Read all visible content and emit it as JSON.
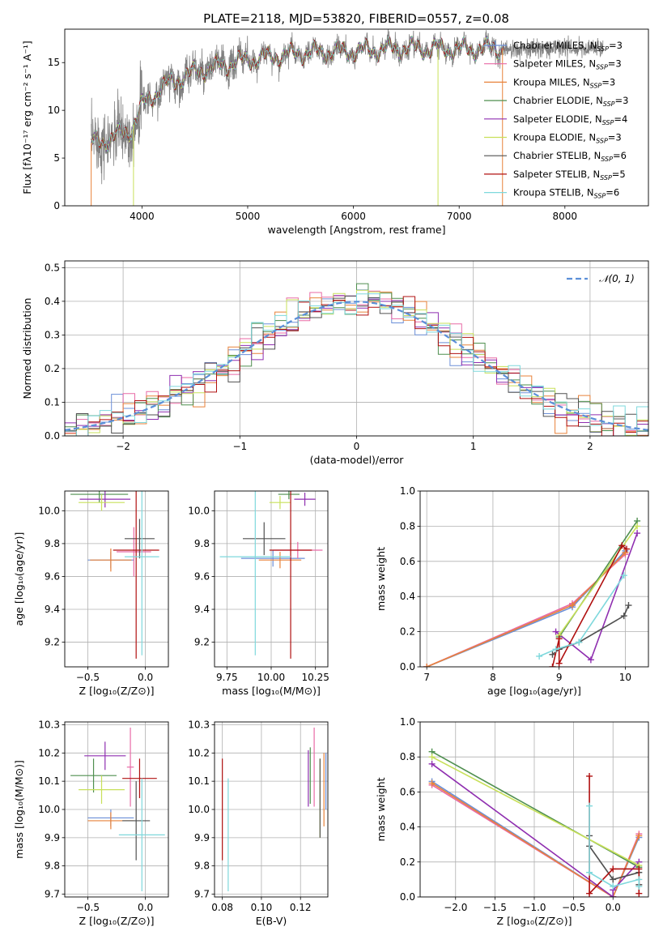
{
  "figure": {
    "title": "PLATE=2118, MJD=53820, FIBERID=0557, z=0.08"
  },
  "colors": {
    "Chabrier MILES": "#6b8fd8",
    "Salpeter MILES": "#e86aa6",
    "Kroupa MILES": "#e8823a",
    "Chabrier ELODIE": "#4f8f4f",
    "Salpeter ELODIE": "#8f2fb0",
    "Kroupa ELODIE": "#c8e05a",
    "Chabrier STELIB": "#505050",
    "Salpeter STELIB": "#b01010",
    "Kroupa STELIB": "#7ed8dc",
    "data": "#808080"
  },
  "chart_data": [
    {
      "type": "line",
      "id": "spectrum",
      "xlabel": "wavelength [Angstrom, rest frame]",
      "ylabel": "Flux [fλ10⁻¹⁷ erg cm⁻² s⁻¹ A⁻¹]",
      "xlim": [
        3270,
        8790
      ],
      "ylim": [
        0,
        18.5
      ],
      "xticks": [
        "4000",
        "5000",
        "6000",
        "7000",
        "8000"
      ],
      "yticks": [
        "0",
        "5",
        "10",
        "15"
      ],
      "legend_position": "right",
      "legend": [
        {
          "label": "Chabrier MILES, N",
          "sub": "SSP",
          "tail": "=3",
          "key": "Chabrier MILES"
        },
        {
          "label": "Salpeter MILES, N",
          "sub": "SSP",
          "tail": "=3",
          "key": "Salpeter MILES"
        },
        {
          "label": "Kroupa MILES, N",
          "sub": "SSP",
          "tail": "=3",
          "key": "Kroupa MILES"
        },
        {
          "label": "Chabrier ELODIE, N",
          "sub": "SSP",
          "tail": "=3",
          "key": "Chabrier ELODIE"
        },
        {
          "label": "Salpeter ELODIE, N",
          "sub": "SSP",
          "tail": "=4",
          "key": "Salpeter ELODIE"
        },
        {
          "label": "Kroupa ELODIE, N",
          "sub": "SSP",
          "tail": "=3",
          "key": "Kroupa ELODIE"
        },
        {
          "label": "Chabrier STELIB, N",
          "sub": "SSP",
          "tail": "=6",
          "key": "Chabrier STELIB"
        },
        {
          "label": "Salpeter STELIB, N",
          "sub": "SSP",
          "tail": "=5",
          "key": "Salpeter STELIB"
        },
        {
          "label": "Kroupa STELIB, N",
          "sub": "SSP",
          "tail": "=6",
          "key": "Kroupa STELIB"
        }
      ],
      "continuum": [
        [
          3500,
          6.5
        ],
        [
          3700,
          7
        ],
        [
          3900,
          8
        ],
        [
          4000,
          10.5
        ],
        [
          4200,
          12.5
        ],
        [
          4500,
          14
        ],
        [
          5000,
          15.3
        ],
        [
          5500,
          16
        ],
        [
          6000,
          16.2
        ],
        [
          6500,
          16.5
        ],
        [
          7000,
          16.4
        ],
        [
          7500,
          16.5
        ]
      ],
      "model_range": [
        3520,
        7420
      ],
      "data_range": [
        3520,
        8360
      ],
      "absorption_features": [
        [
          3520,
          0
        ],
        [
          3920,
          0
        ],
        [
          6800,
          0
        ],
        [
          7410,
          0
        ]
      ]
    },
    {
      "type": "bar",
      "id": "residuals",
      "xlabel": "(data-model)/error",
      "ylabel": "Normed distribution",
      "xlim": [
        -2.5,
        2.5
      ],
      "ylim": [
        0,
        0.52
      ],
      "xticks": [
        "−2",
        "−1",
        "0",
        "1",
        "2"
      ],
      "yticks": [
        "0.0",
        "0.1",
        "0.2",
        "0.3",
        "0.4",
        "0.5"
      ],
      "grid": true,
      "bin_width": 0.1,
      "reference": {
        "label": "𝒩(0, 1)",
        "type": "normal",
        "mean": 0,
        "sigma": 1,
        "color": "#5b8fd8"
      },
      "legend_position": "top-right"
    },
    {
      "type": "scatter",
      "id": "age-vs-Z",
      "xlabel": "Z [log₁₀(Z/Z⊙)]",
      "ylabel": "age  [log₁₀(age/yr)]",
      "xlim": [
        -0.7,
        0.2
      ],
      "ylim": [
        9.05,
        10.12
      ],
      "xticks": [
        "−0.5",
        "0.0"
      ],
      "yticks": [
        "9.2",
        "9.4",
        "9.6",
        "9.8",
        "10.0"
      ],
      "grid": true,
      "points": [
        {
          "key": "Chabrier MILES",
          "x": -0.3,
          "xerr": 0.2,
          "y": 9.7,
          "yerr": 0.05
        },
        {
          "key": "Salpeter MILES",
          "x": -0.1,
          "xerr": 0.15,
          "y": 9.75,
          "yerr": 0.15
        },
        {
          "key": "Kroupa MILES",
          "x": -0.3,
          "xerr": 0.18,
          "y": 9.7,
          "yerr": 0.07
        },
        {
          "key": "Chabrier ELODIE",
          "x": -0.4,
          "xerr": 0.25,
          "y": 10.1,
          "yerr": 0.05
        },
        {
          "key": "Salpeter ELODIE",
          "x": -0.35,
          "xerr": 0.22,
          "y": 10.07,
          "yerr": 0.05
        },
        {
          "key": "Kroupa ELODIE",
          "x": -0.38,
          "xerr": 0.2,
          "y": 10.05,
          "yerr": 0.05
        },
        {
          "key": "Chabrier STELIB",
          "x": -0.05,
          "xerr": 0.13,
          "y": 9.83,
          "yerr": 0.12
        },
        {
          "key": "Salpeter STELIB",
          "x": -0.08,
          "xerr": 0.2,
          "y": 9.76,
          "yerr": 0.66
        },
        {
          "key": "Kroupa STELIB",
          "x": -0.03,
          "xerr": 0.15,
          "y": 9.72,
          "yerr": 0.6
        }
      ]
    },
    {
      "type": "scatter",
      "id": "age-vs-mass",
      "xlabel": "mass [log₁₀(M/M⊙)]",
      "ylabel": "",
      "xlim": [
        9.68,
        10.32
      ],
      "ylim": [
        9.05,
        10.12
      ],
      "xticks": [
        "9.75",
        "10.00",
        "10.25"
      ],
      "yticks": [
        "9.2",
        "9.4",
        "9.6",
        "9.8",
        "10.0"
      ],
      "grid": true,
      "points": [
        {
          "key": "Chabrier MILES",
          "x": 10.01,
          "xerr": 0.18,
          "y": 9.71,
          "yerr": 0.05
        },
        {
          "key": "Salpeter MILES",
          "x": 10.15,
          "xerr": 0.14,
          "y": 9.76,
          "yerr": 0.05
        },
        {
          "key": "Kroupa MILES",
          "x": 10.05,
          "xerr": 0.12,
          "y": 9.7,
          "yerr": 0.05
        },
        {
          "key": "Chabrier ELODIE",
          "x": 10.1,
          "xerr": 0.06,
          "y": 10.1,
          "yerr": 0.03
        },
        {
          "key": "Salpeter ELODIE",
          "x": 10.19,
          "xerr": 0.06,
          "y": 10.07,
          "yerr": 0.04
        },
        {
          "key": "Kroupa ELODIE",
          "x": 10.05,
          "xerr": 0.06,
          "y": 10.05,
          "yerr": 0.04
        },
        {
          "key": "Chabrier STELIB",
          "x": 9.96,
          "xerr": 0.12,
          "y": 9.83,
          "yerr": 0.1
        },
        {
          "key": "Salpeter STELIB",
          "x": 10.11,
          "xerr": 0.12,
          "y": 9.76,
          "yerr": 0.66
        },
        {
          "key": "Kroupa STELIB",
          "x": 9.91,
          "xerr": 0.2,
          "y": 9.72,
          "yerr": 0.6
        }
      ]
    },
    {
      "type": "line",
      "id": "massweight-vs-age",
      "xlabel": "age  [log₁₀(age/yr)]",
      "ylabel": "mass weight",
      "xlim": [
        6.9,
        10.35
      ],
      "ylim": [
        0,
        1
      ],
      "xticks": [
        "7",
        "8",
        "9",
        "10"
      ],
      "yticks": [
        "0.0",
        "0.2",
        "0.4",
        "0.6",
        "0.8",
        "1.0"
      ],
      "grid": true,
      "series": [
        {
          "key": "Chabrier MILES",
          "x": [
            7.0,
            9.2,
            10.0
          ],
          "y": [
            0.0,
            0.34,
            0.66
          ]
        },
        {
          "key": "Salpeter MILES",
          "x": [
            7.0,
            9.2,
            10.0
          ],
          "y": [
            0.0,
            0.36,
            0.64
          ]
        },
        {
          "key": "Kroupa MILES",
          "x": [
            7.0,
            9.2,
            10.0
          ],
          "y": [
            0.0,
            0.35,
            0.65
          ]
        },
        {
          "key": "Chabrier ELODIE",
          "x": [
            9.0,
            10.18
          ],
          "y": [
            0.17,
            0.83
          ]
        },
        {
          "key": "Salpeter ELODIE",
          "x": [
            8.95,
            9.48,
            10.18
          ],
          "y": [
            0.2,
            0.04,
            0.76
          ]
        },
        {
          "key": "Kroupa ELODIE",
          "x": [
            9.0,
            10.18
          ],
          "y": [
            0.18,
            0.8
          ]
        },
        {
          "key": "Chabrier STELIB",
          "x": [
            8.9,
            9.0,
            9.3,
            9.98,
            10.05
          ],
          "y": [
            0.07,
            0.1,
            0.14,
            0.29,
            0.35
          ]
        },
        {
          "key": "Salpeter STELIB",
          "x": [
            8.9,
            9.0,
            9.0,
            9.95,
            10.02
          ],
          "y": [
            0.0,
            0.16,
            0.02,
            0.69,
            0.67
          ]
        },
        {
          "key": "Kroupa STELIB",
          "x": [
            8.7,
            8.95,
            9.3,
            9.98
          ],
          "y": [
            0.06,
            0.1,
            0.14,
            0.52
          ]
        }
      ]
    },
    {
      "type": "scatter",
      "id": "mass-vs-Z",
      "xlabel": "Z [log₁₀(Z/Z⊙)]",
      "ylabel": "mass [log₁₀(M/M⊙)]",
      "xlim": [
        -0.7,
        0.2
      ],
      "ylim": [
        9.69,
        10.31
      ],
      "xticks": [
        "−0.5",
        "0.0"
      ],
      "yticks": [
        "9.7",
        "9.8",
        "9.9",
        "10.0",
        "10.1",
        "10.2",
        "10.3"
      ],
      "grid": true,
      "points": [
        {
          "key": "Chabrier MILES",
          "x": -0.3,
          "xerr": 0.2,
          "y": 9.97,
          "yerr": 0.03
        },
        {
          "key": "Salpeter MILES",
          "x": -0.13,
          "xerr": 0.03,
          "y": 10.15,
          "yerr": 0.14
        },
        {
          "key": "Kroupa MILES",
          "x": -0.3,
          "xerr": 0.2,
          "y": 9.96,
          "yerr": 0.03
        },
        {
          "key": "Chabrier ELODIE",
          "x": -0.45,
          "xerr": 0.2,
          "y": 10.12,
          "yerr": 0.06
        },
        {
          "key": "Salpeter ELODIE",
          "x": -0.35,
          "xerr": 0.18,
          "y": 10.19,
          "yerr": 0.05
        },
        {
          "key": "Kroupa ELODIE",
          "x": -0.38,
          "xerr": 0.2,
          "y": 10.07,
          "yerr": 0.05
        },
        {
          "key": "Chabrier STELIB",
          "x": -0.08,
          "xerr": 0.12,
          "y": 9.96,
          "yerr": 0.14
        },
        {
          "key": "Salpeter STELIB",
          "x": -0.05,
          "xerr": 0.15,
          "y": 10.11,
          "yerr": 0.07
        },
        {
          "key": "Kroupa STELIB",
          "x": -0.03,
          "xerr": 0.2,
          "y": 9.91,
          "yerr": 0.2
        }
      ]
    },
    {
      "type": "scatter",
      "id": "mass-vs-ebv",
      "xlabel": "E(B-V)",
      "ylabel": "",
      "xlim": [
        0.076,
        0.134
      ],
      "ylim": [
        9.69,
        10.31
      ],
      "xticks": [
        "0.08",
        "0.10",
        "0.12"
      ],
      "yticks": [
        "9.7",
        "9.8",
        "9.9",
        "10.0",
        "10.1",
        "10.2",
        "10.3"
      ],
      "grid": true,
      "points": [
        {
          "key": "Chabrier MILES",
          "x": 0.133,
          "y": 10.1,
          "yerr": 0.1
        },
        {
          "key": "Salpeter MILES",
          "x": 0.127,
          "y": 10.15,
          "yerr": 0.14
        },
        {
          "key": "Kroupa MILES",
          "x": 0.132,
          "y": 10.07,
          "yerr": 0.13
        },
        {
          "key": "Chabrier ELODIE",
          "x": 0.125,
          "y": 10.12,
          "yerr": 0.1
        },
        {
          "key": "Salpeter ELODIE",
          "x": 0.124,
          "y": 10.11,
          "yerr": 0.1
        },
        {
          "key": "Kroupa ELODIE",
          "x": 0.13,
          "y": 10.04,
          "yerr": 0.14
        },
        {
          "key": "Chabrier STELIB",
          "x": 0.13,
          "y": 10.04,
          "yerr": 0.14
        },
        {
          "key": "Salpeter STELIB",
          "x": 0.08,
          "y": 10.0,
          "yerr": 0.18
        },
        {
          "key": "Kroupa STELIB",
          "x": 0.083,
          "y": 9.91,
          "yerr": 0.2
        }
      ]
    },
    {
      "type": "line",
      "id": "massweight-vs-Z",
      "xlabel": "Z [log₁₀(Z/Z⊙)]",
      "ylabel": "mass weight",
      "xlim": [
        -2.45,
        0.45
      ],
      "ylim": [
        0,
        1
      ],
      "xticks": [
        "−2.0",
        "−1.5",
        "−1.0",
        "−0.5",
        "0.0"
      ],
      "yticks": [
        "0.0",
        "0.2",
        "0.4",
        "0.6",
        "0.8",
        "1.0"
      ],
      "grid": true,
      "series": [
        {
          "key": "Chabrier MILES",
          "x": [
            -2.3,
            0.0,
            0.33
          ],
          "y": [
            0.66,
            0.0,
            0.34
          ]
        },
        {
          "key": "Salpeter MILES",
          "x": [
            -2.3,
            0.0,
            0.33
          ],
          "y": [
            0.64,
            0.0,
            0.36
          ]
        },
        {
          "key": "Kroupa MILES",
          "x": [
            -2.3,
            0.0,
            0.33
          ],
          "y": [
            0.65,
            0.0,
            0.35
          ]
        },
        {
          "key": "Chabrier ELODIE",
          "x": [
            -2.3,
            0.33
          ],
          "y": [
            0.83,
            0.17
          ]
        },
        {
          "key": "Salpeter ELODIE",
          "x": [
            -2.3,
            0.0,
            0.0,
            0.33
          ],
          "y": [
            0.76,
            0.0,
            0.04,
            0.2
          ]
        },
        {
          "key": "Kroupa ELODIE",
          "x": [
            -2.3,
            0.33
          ],
          "y": [
            0.8,
            0.18
          ]
        },
        {
          "key": "Chabrier STELIB",
          "x": [
            -0.3,
            -0.3,
            0.0,
            0.33,
            0.33
          ],
          "y": [
            0.35,
            0.29,
            0.1,
            0.14,
            0.07
          ]
        },
        {
          "key": "Salpeter STELIB",
          "x": [
            -0.3,
            -0.3,
            0.0,
            0.33,
            0.33
          ],
          "y": [
            0.69,
            0.02,
            0.16,
            0.16,
            0.02
          ]
        },
        {
          "key": "Kroupa STELIB",
          "x": [
            -0.3,
            -0.3,
            0.0,
            0.33,
            0.33
          ],
          "y": [
            0.52,
            0.14,
            0.06,
            0.1,
            0.06
          ]
        }
      ]
    }
  ]
}
